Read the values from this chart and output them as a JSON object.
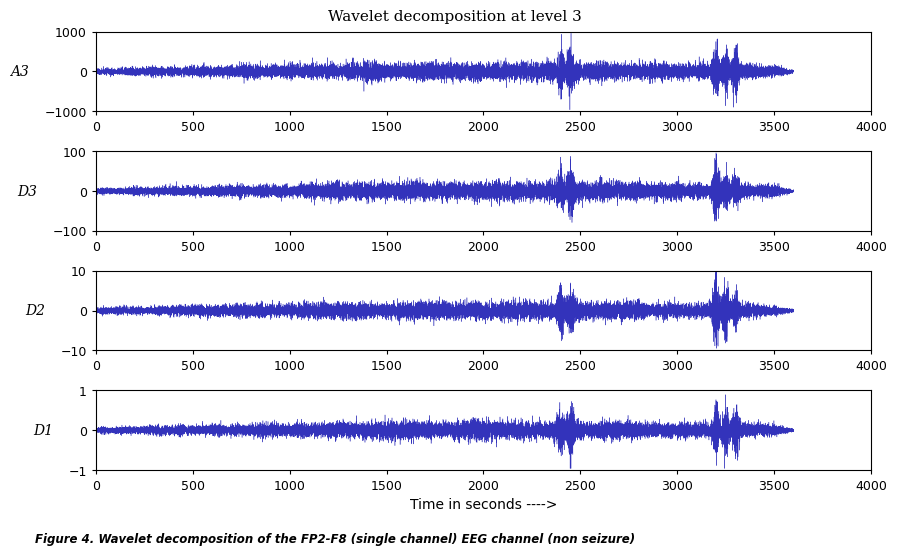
{
  "title": "Wavelet decomposition at level 3",
  "xlabel": "Time in seconds ---->",
  "subplots": [
    {
      "label": "A3",
      "ylim": [
        -1000,
        1000
      ],
      "yticks": [
        -1000,
        0,
        1000
      ],
      "amp": 120,
      "noise_scale": 0.15
    },
    {
      "label": "D3",
      "ylim": [
        -100,
        100
      ],
      "yticks": [
        -100,
        0,
        100
      ],
      "amp": 12,
      "noise_scale": 0.18
    },
    {
      "label": "D2",
      "ylim": [
        -10,
        10
      ],
      "yticks": [
        -10,
        0,
        10
      ],
      "amp": 1.2,
      "noise_scale": 0.22
    },
    {
      "label": "D1",
      "ylim": [
        -1,
        1
      ],
      "yticks": [
        -1,
        0,
        1
      ],
      "amp": 0.12,
      "noise_scale": 0.25
    }
  ],
  "xlim": [
    0,
    4000
  ],
  "xticks": [
    0,
    500,
    1000,
    1500,
    2000,
    2500,
    3000,
    3500,
    4000
  ],
  "x_data_end": 3600,
  "n_samples": 18000,
  "line_color": "#3333BB",
  "background_color": "#ffffff",
  "title_fontsize": 11,
  "label_fontsize": 10,
  "tick_fontsize": 9,
  "figure_caption": "Figure 4. Wavelet decomposition of the FP2-F8 (single channel) EEG channel (non seizure)"
}
